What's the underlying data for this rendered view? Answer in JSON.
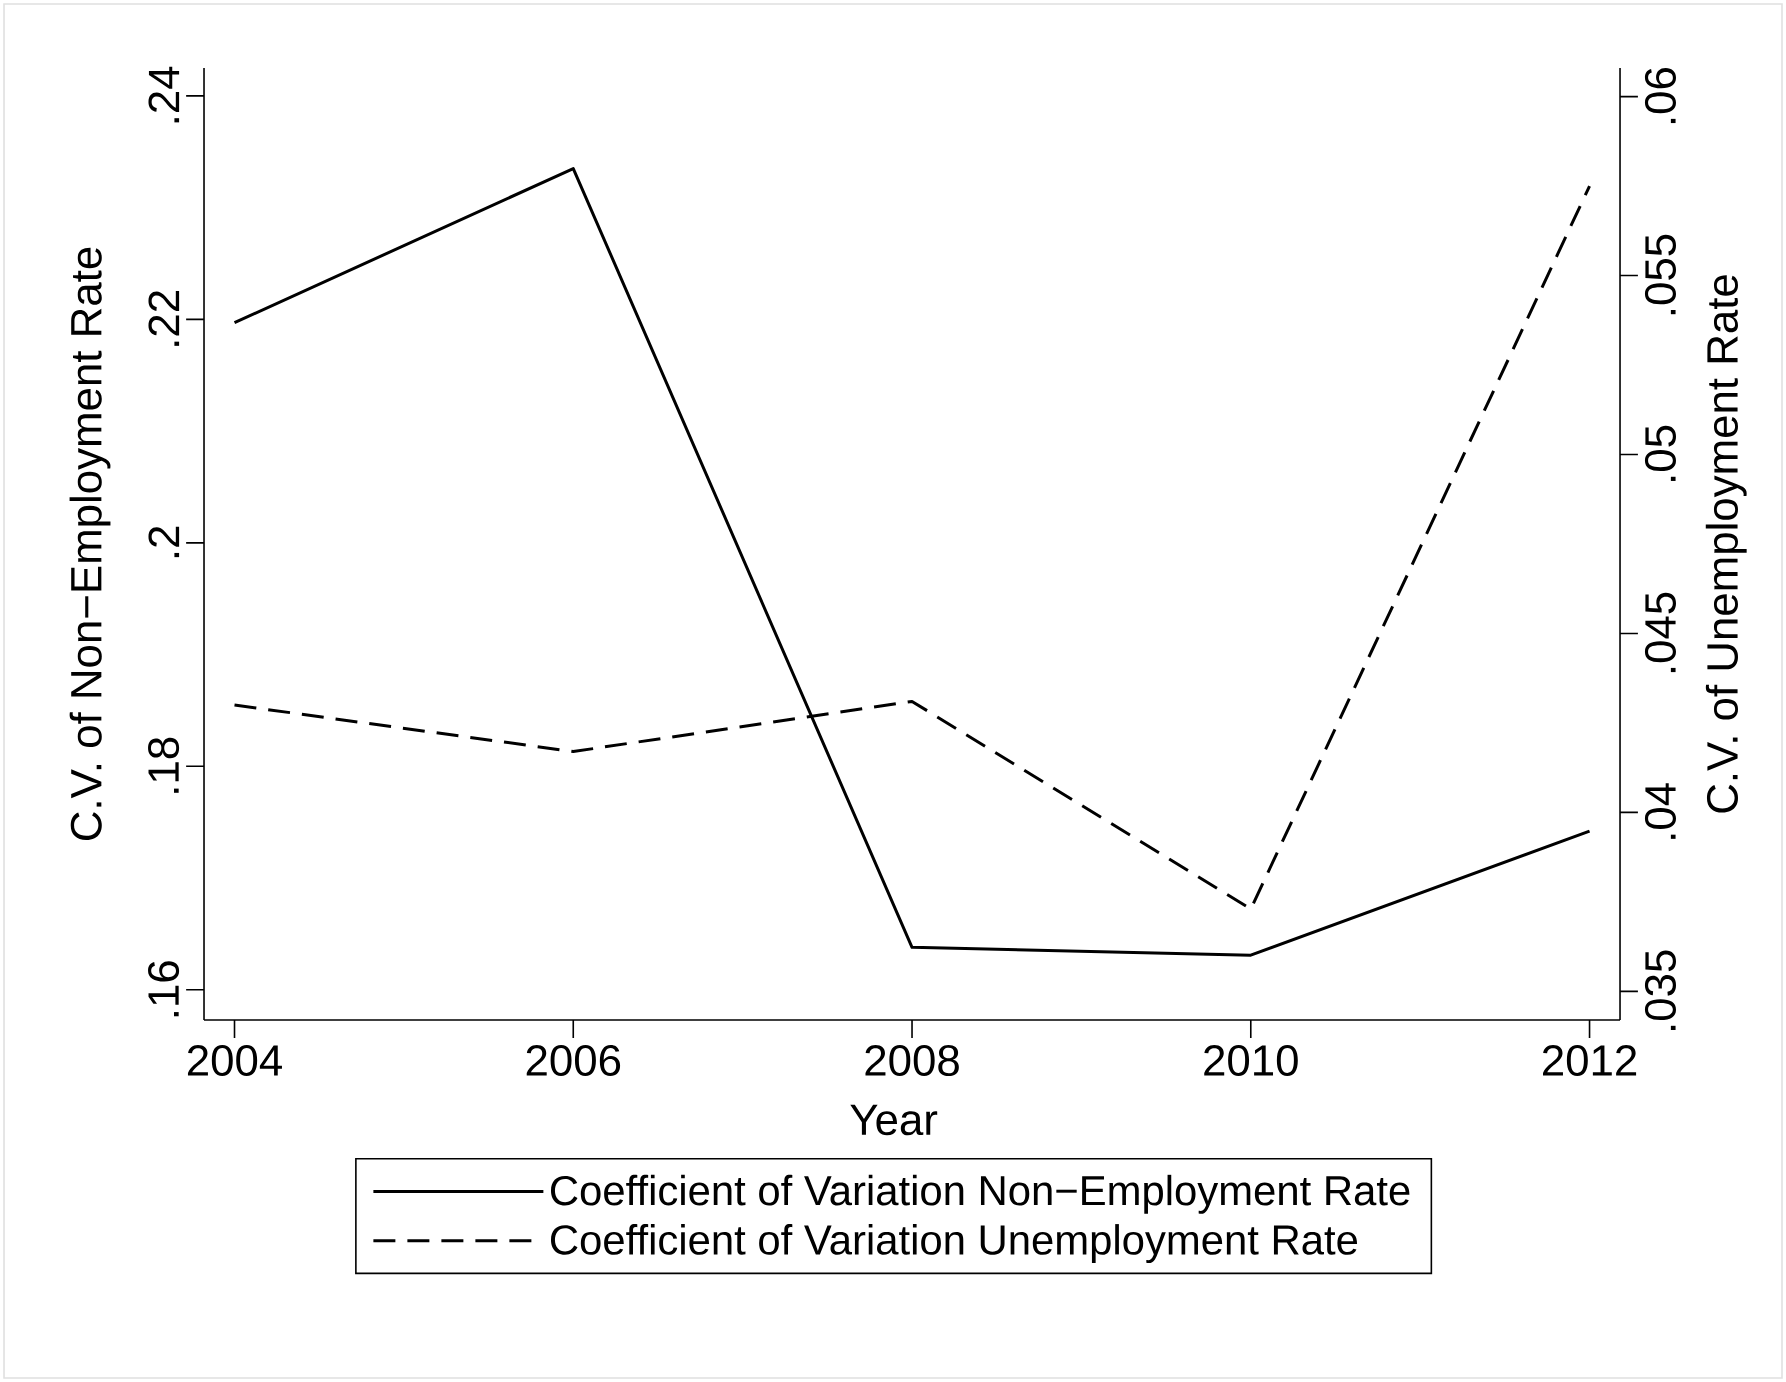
{
  "chart_data": {
    "type": "line",
    "x": [
      2004,
      2006,
      2008,
      2010,
      2012
    ],
    "xlabel": "Year",
    "ylabel": "C.V. of Non−Employment Rate",
    "y2label": "C.V. of Unemployment Rate",
    "series": [
      {
        "name": "Coefficient of Variation Non−Employment Rate",
        "color": "#000000",
        "line_style": "solid",
        "values": [
          0.2197,
          0.2335,
          0.1638,
          0.1631,
          0.1742
        ]
      },
      {
        "name": "Coefficient of Variation Unemployment Rate",
        "color": "#000000",
        "line_style": "dashed",
        "axis": "y2",
        "values": [
          0.043,
          0.0417,
          0.0431,
          0.0373,
          0.0575
        ]
      }
    ],
    "xlim": [
      2003.82,
      2012.18
    ],
    "xticks": [
      2004,
      2006,
      2008,
      2010,
      2012
    ],
    "ylim": [
      0.1573,
      0.2425
    ],
    "yticks": [
      {
        "value": 0.16,
        "label": ".16"
      },
      {
        "value": 0.18,
        "label": ".18"
      },
      {
        "value": 0.2,
        "label": ".2"
      },
      {
        "value": 0.22,
        "label": ".22"
      },
      {
        "value": 0.24,
        "label": ".24"
      }
    ],
    "y2lim": [
      0.0342,
      0.0608
    ],
    "y2ticks": [
      {
        "value": 0.035,
        "label": ".035"
      },
      {
        "value": 0.04,
        "label": ".04"
      },
      {
        "value": 0.045,
        "label": ".045"
      },
      {
        "value": 0.05,
        "label": ".05"
      },
      {
        "value": 0.055,
        "label": ".055"
      },
      {
        "value": 0.06,
        "label": ".06"
      }
    ],
    "legend": "bottom"
  }
}
